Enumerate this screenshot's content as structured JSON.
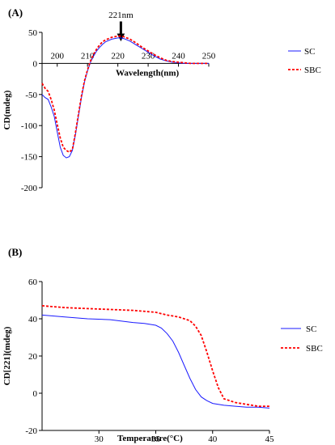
{
  "colors": {
    "sc": "#1a1aff",
    "sbc": "#ff0000",
    "axis": "#000000"
  },
  "chart_data": [
    {
      "panel": "(A)",
      "type": "line",
      "xlabel": "Wavelength(nm)",
      "ylabel": "CD(mdeg)",
      "xlim": [
        195,
        250
      ],
      "ylim": [
        -200,
        50
      ],
      "x_ticks": [
        "200",
        "210",
        "220",
        "230",
        "240",
        "250"
      ],
      "y_ticks": [
        "50",
        "0",
        "-50",
        "-100",
        "-150",
        "-200"
      ],
      "annotation": "221nm",
      "annotation_x": 221,
      "legend": "right",
      "series": [
        {
          "name": "SC",
          "style": "solid",
          "x": [
            195,
            196,
            197,
            198,
            199,
            200,
            201,
            202,
            203,
            204,
            205,
            206,
            207,
            208,
            209,
            210,
            211,
            212,
            213,
            214,
            215,
            216,
            218,
            220,
            221,
            222,
            224,
            226,
            228,
            230,
            232,
            234,
            236,
            238,
            240,
            242,
            244,
            246,
            248,
            250
          ],
          "y": [
            -50,
            -55,
            -58,
            -70,
            -85,
            -110,
            -135,
            -148,
            -152,
            -150,
            -140,
            -115,
            -85,
            -55,
            -30,
            -12,
            2,
            12,
            20,
            26,
            31,
            35,
            39,
            41,
            41,
            40,
            36,
            30,
            24,
            18,
            12,
            7,
            4,
            2,
            1,
            0,
            0,
            0,
            0,
            0
          ]
        },
        {
          "name": "SBC",
          "style": "dashed",
          "x": [
            195,
            196,
            197,
            198,
            199,
            200,
            201,
            202,
            203,
            204,
            205,
            206,
            207,
            208,
            209,
            210,
            211,
            212,
            213,
            214,
            215,
            216,
            218,
            220,
            221,
            222,
            224,
            226,
            228,
            230,
            232,
            234,
            236,
            238,
            240,
            242,
            244,
            246,
            248,
            250
          ],
          "y": [
            -32,
            -40,
            -45,
            -58,
            -75,
            -98,
            -120,
            -135,
            -140,
            -143,
            -138,
            -112,
            -82,
            -52,
            -28,
            -10,
            4,
            15,
            23,
            30,
            35,
            38,
            42,
            44,
            44,
            43,
            39,
            33,
            26,
            20,
            14,
            9,
            5,
            3,
            2,
            1,
            0,
            0,
            0,
            0
          ]
        }
      ]
    },
    {
      "panel": "(B)",
      "type": "line",
      "xlabel": "Temperature(°C)",
      "ylabel": "CD[221](mdeg)",
      "xlim": [
        25,
        45
      ],
      "ylim": [
        -20,
        60
      ],
      "x_ticks": [
        "30",
        "35",
        "40",
        "45"
      ],
      "y_ticks": [
        "60",
        "40",
        "20",
        "0",
        "-20"
      ],
      "legend": "right",
      "series": [
        {
          "name": "SC",
          "style": "solid",
          "x": [
            25,
            27,
            29,
            31,
            33,
            34,
            35,
            35.5,
            36,
            36.5,
            37,
            37.5,
            38,
            38.5,
            39,
            39.5,
            40,
            41,
            42,
            43,
            44,
            45
          ],
          "y": [
            42,
            41,
            40,
            39.5,
            38,
            37.5,
            36.5,
            35,
            32,
            28,
            22,
            15,
            8,
            2,
            -2,
            -4,
            -5.5,
            -6.5,
            -7,
            -7.5,
            -7.5,
            -8
          ]
        },
        {
          "name": "SBC",
          "style": "dashed",
          "x": [
            25,
            27,
            29,
            31,
            33,
            35,
            36,
            37,
            38,
            38.5,
            39,
            39.5,
            40,
            40.5,
            41,
            42,
            43,
            44,
            45
          ],
          "y": [
            47,
            46,
            45.5,
            45,
            44.5,
            43.5,
            42,
            41,
            39,
            36,
            31,
            22,
            12,
            3,
            -3,
            -5,
            -6,
            -7,
            -7
          ]
        }
      ]
    }
  ]
}
